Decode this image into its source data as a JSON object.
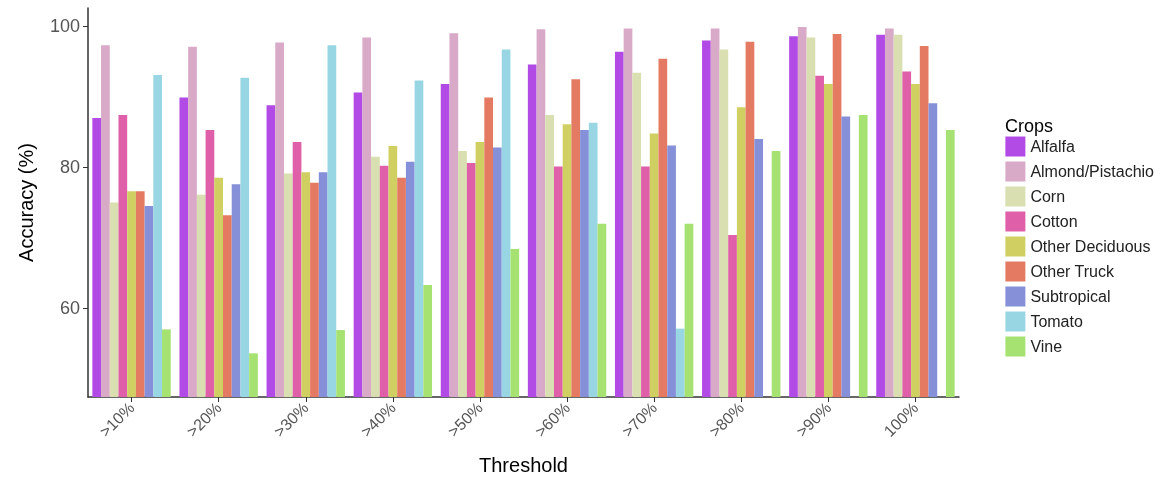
{
  "chart_data": {
    "type": "bar",
    "xlabel": "Threshold",
    "ylabel": "Accuracy (%)",
    "legend_title": "Crops",
    "categories": [
      ">10%",
      ">20%",
      ">30%",
      ">40%",
      ">50%",
      ">60%",
      ">70%",
      ">80%",
      ">90%",
      "100%"
    ],
    "series": [
      {
        "name": "Alfalfa",
        "color": "#b24ae6",
        "values": [
          87,
          89.9,
          88.8,
          90.6,
          91.8,
          94.6,
          96.4,
          98,
          98.6,
          98.8
        ]
      },
      {
        "name": "Almond/Pistachio",
        "color": "#d9a9c8",
        "values": [
          97.3,
          97.1,
          97.7,
          98.4,
          99,
          99.6,
          99.7,
          99.7,
          99.9,
          99.7
        ]
      },
      {
        "name": "Corn",
        "color": "#d9dfb0",
        "values": [
          75,
          76.1,
          79.1,
          81.5,
          82.3,
          87.4,
          93.4,
          96.7,
          98.4,
          98.8
        ]
      },
      {
        "name": "Cotton",
        "color": "#e05fa9",
        "values": [
          87.4,
          85.3,
          83.6,
          80.2,
          80.6,
          80.1,
          80.1,
          70.4,
          93,
          93.6
        ]
      },
      {
        "name": "Other Deciduous",
        "color": "#cfcf62",
        "values": [
          76.6,
          78.5,
          79.3,
          83,
          83.6,
          86.1,
          84.8,
          88.5,
          91.8,
          91.8
        ]
      },
      {
        "name": "Other Truck",
        "color": "#e57a62",
        "values": [
          76.6,
          73.2,
          77.8,
          78.5,
          89.9,
          92.5,
          95.4,
          97.8,
          98.9,
          97.2
        ]
      },
      {
        "name": "Subtropical",
        "color": "#8590d8",
        "values": [
          74.5,
          77.6,
          79.3,
          80.8,
          82.8,
          85.3,
          83.1,
          84,
          87.2,
          89.1
        ]
      },
      {
        "name": "Tomato",
        "color": "#99d6e3",
        "values": [
          93.1,
          92.7,
          97.3,
          92.3,
          96.7,
          86.3,
          57.1,
          null,
          null,
          null
        ]
      },
      {
        "name": "Vine",
        "color": "#a5e272",
        "values": [
          57,
          53.6,
          56.9,
          63.3,
          68.4,
          72,
          72,
          82.3,
          87.4,
          85.3
        ]
      }
    ],
    "ylim": [
      47.4,
      102.6
    ],
    "yticks": [
      60,
      80,
      100
    ],
    "grid": false,
    "legend": "right"
  }
}
